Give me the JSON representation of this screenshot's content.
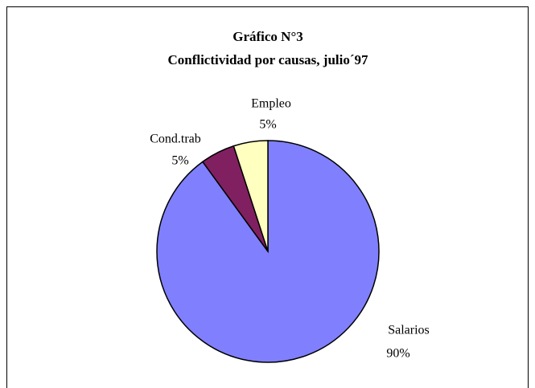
{
  "chart_data": {
    "type": "pie",
    "title": "Gráfico N°3",
    "subtitle": "Conflictividad por causas, julio´97",
    "categories": [
      "Salarios",
      "Cond.trab",
      "Empleo"
    ],
    "values": [
      90,
      5,
      5
    ],
    "value_labels": [
      "90%",
      "5%",
      "5%"
    ],
    "colors": [
      "#8080ff",
      "#802060",
      "#ffffc0"
    ]
  }
}
